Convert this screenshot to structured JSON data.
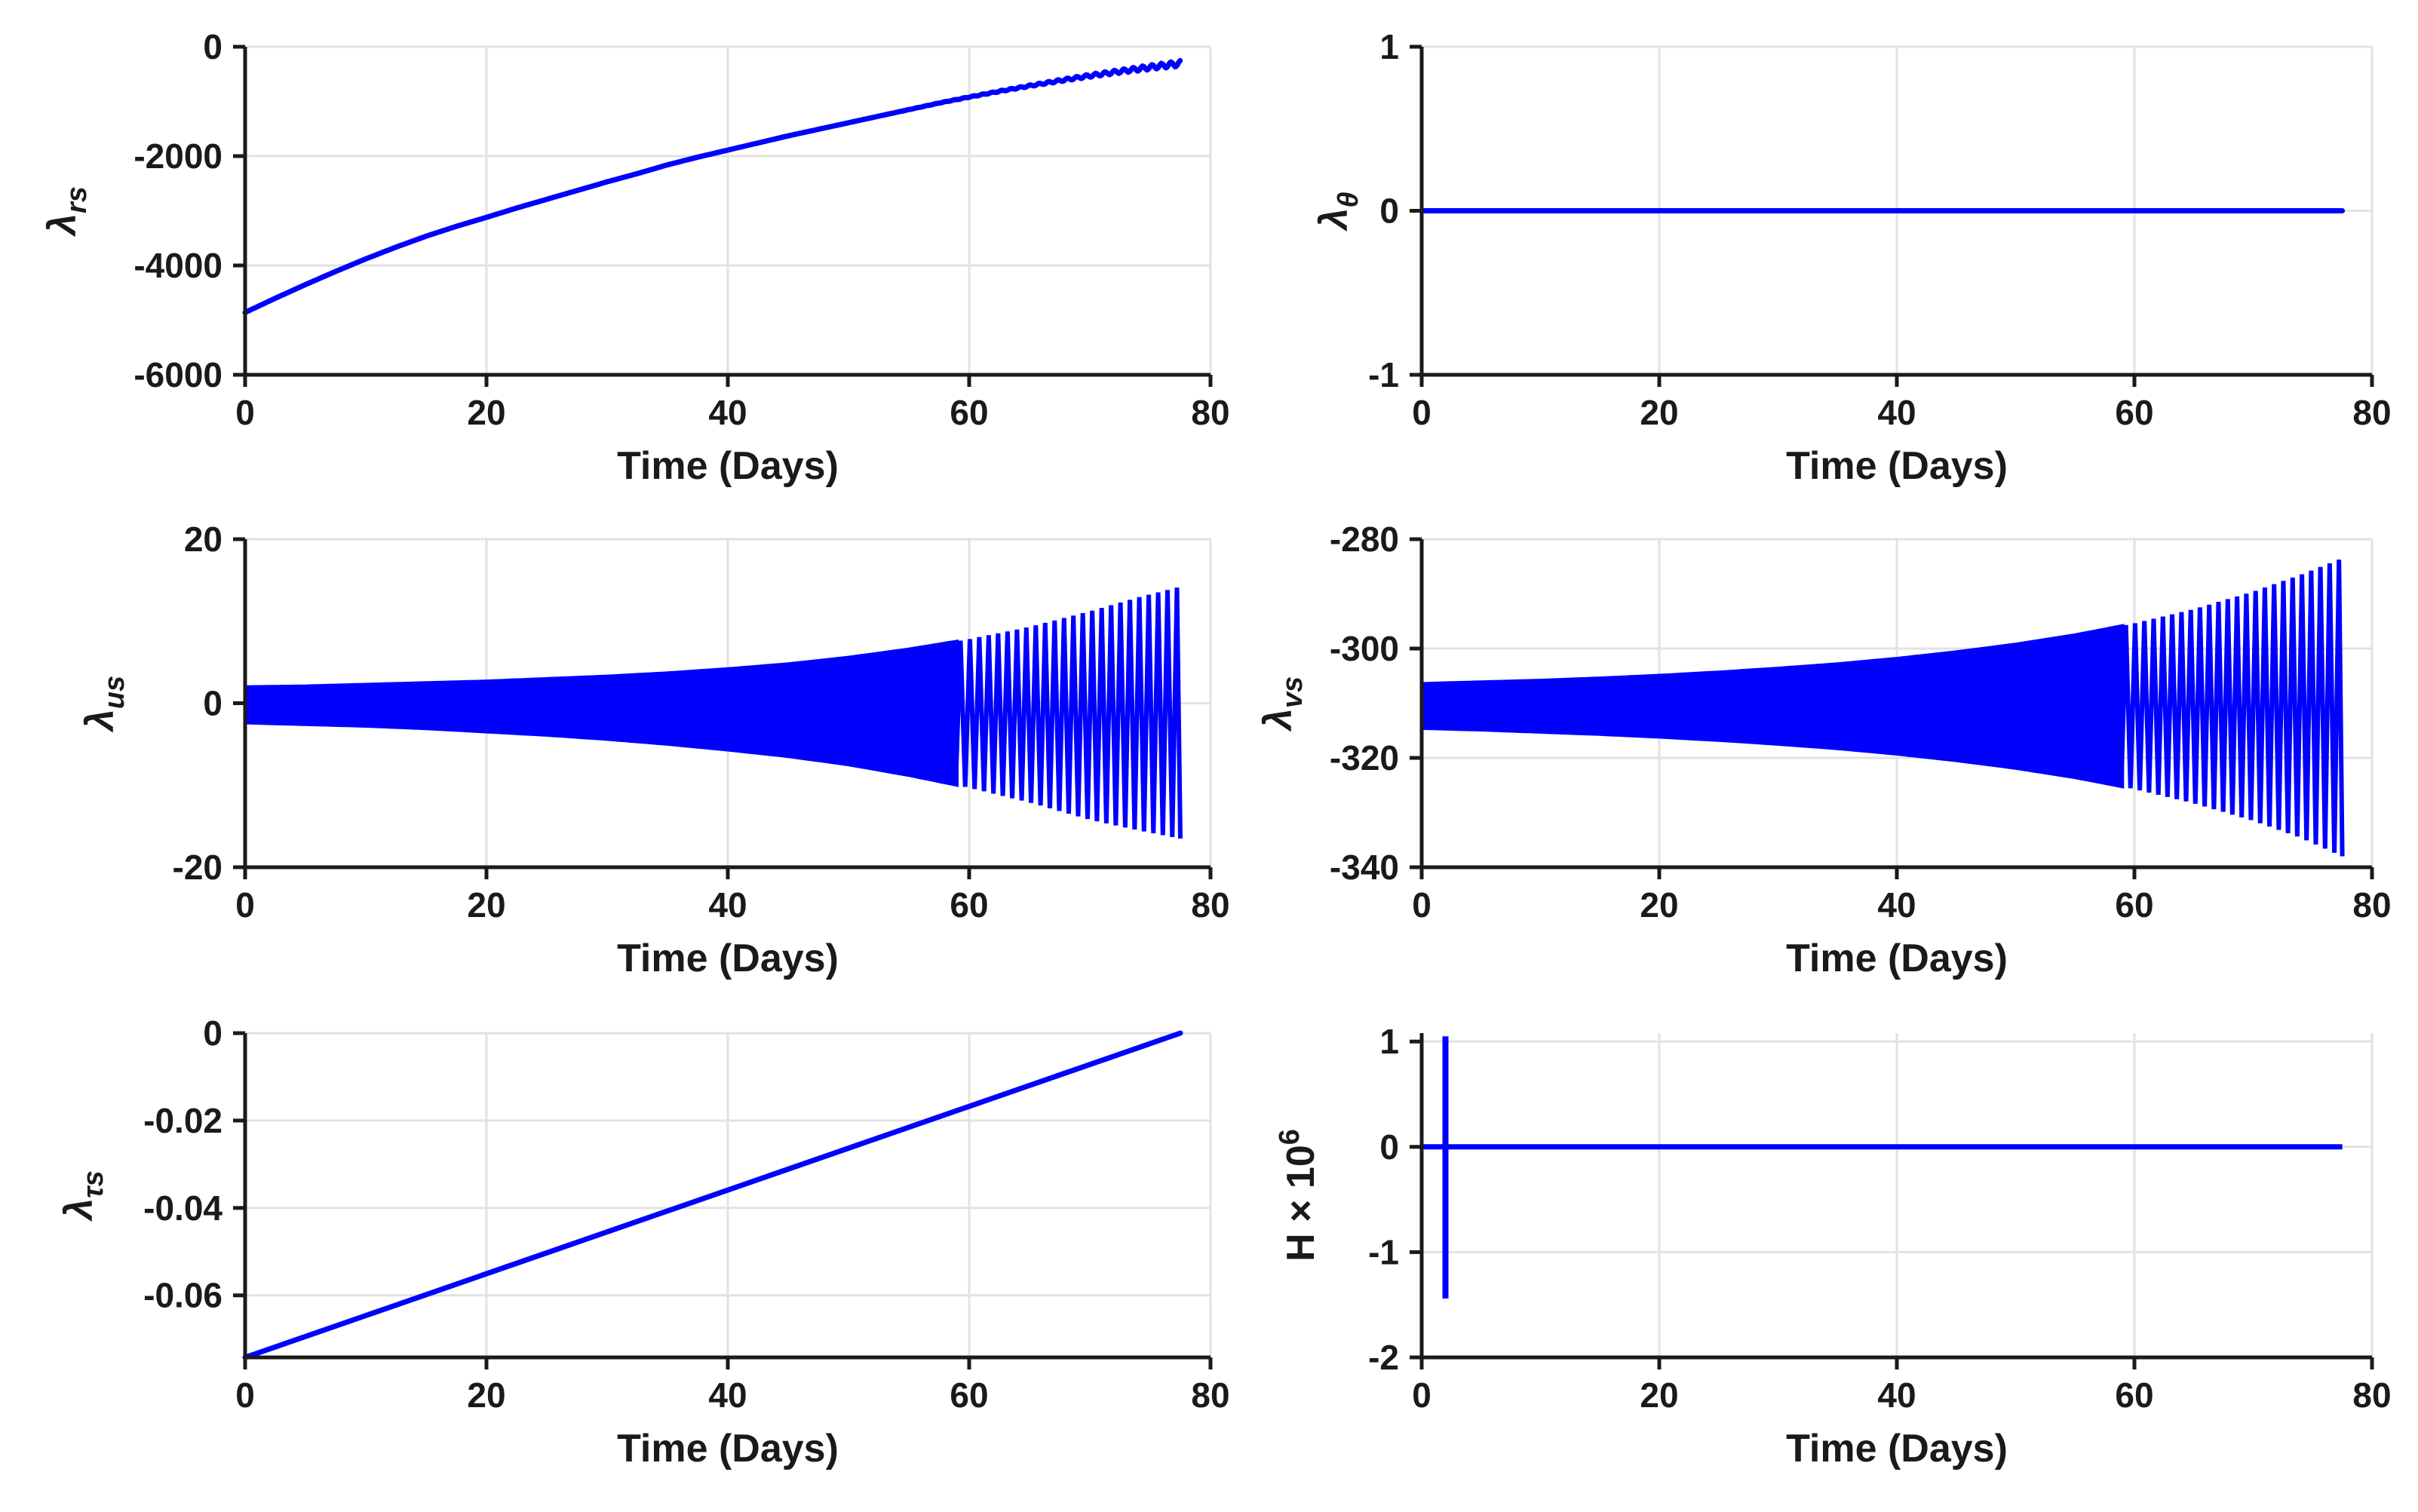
{
  "figure": {
    "background": "#FFFFFF",
    "line_color": "#0000FF",
    "grid_color": "#E2E2E2",
    "axis_color": "#1A1A1A",
    "text_color": "#1A1A1A",
    "xlabel": "Time (Days)",
    "t_end": 77.5
  },
  "chart_data": [
    {
      "id": "lambda-rs",
      "type": "line",
      "ylabel_parts": [
        {
          "t": "λ",
          "i": 1
        },
        {
          "t": "rs",
          "i": 1,
          "s": "sub"
        }
      ],
      "ylabel_text": "lambda_rs",
      "xlabel": "Time (Days)",
      "xlim": [
        0,
        80
      ],
      "ylim": [
        -6000,
        0
      ],
      "xticks": [
        0,
        20,
        40,
        60,
        80
      ],
      "xtick_labels": [
        "0",
        "20",
        "40",
        "60",
        "80"
      ],
      "yticks": [
        0,
        -2000,
        -4000,
        -6000
      ],
      "ytick_labels": [
        "0",
        "-2000",
        "-4000",
        "-6000"
      ],
      "grid": true,
      "x_end": 77.5,
      "points": [
        [
          0,
          -4860
        ],
        [
          2.5,
          -4600
        ],
        [
          5,
          -4350
        ],
        [
          7.5,
          -4110
        ],
        [
          10,
          -3880
        ],
        [
          12.5,
          -3665
        ],
        [
          15,
          -3465
        ],
        [
          17.5,
          -3285
        ],
        [
          20,
          -3120
        ],
        [
          22.5,
          -2950
        ],
        [
          25,
          -2790
        ],
        [
          27.5,
          -2630
        ],
        [
          30,
          -2470
        ],
        [
          32.5,
          -2320
        ],
        [
          35,
          -2160
        ],
        [
          37.5,
          -2020
        ],
        [
          40,
          -1890
        ],
        [
          42.5,
          -1760
        ],
        [
          45,
          -1630
        ],
        [
          47.5,
          -1510
        ],
        [
          50,
          -1390
        ],
        [
          52.5,
          -1270
        ],
        [
          55,
          -1150
        ],
        [
          57.5,
          -1030
        ],
        [
          60,
          -920
        ],
        [
          62.5,
          -815
        ],
        [
          65,
          -715
        ],
        [
          67.5,
          -620
        ],
        [
          70,
          -530
        ],
        [
          72.5,
          -450
        ],
        [
          75,
          -375
        ],
        [
          77.5,
          -305
        ]
      ],
      "ripple": {
        "start": 50,
        "period": 0.78,
        "amp_end": 52,
        "power": 2
      }
    },
    {
      "id": "lambda-theta",
      "type": "line",
      "ylabel_parts": [
        {
          "t": "λ",
          "i": 1
        },
        {
          "t": "θ",
          "i": 1,
          "s": "sub"
        }
      ],
      "ylabel_text": "lambda_theta",
      "xlabel": "Time (Days)",
      "xlim": [
        0,
        80
      ],
      "ylim": [
        -1,
        1
      ],
      "xticks": [
        0,
        20,
        40,
        60,
        80
      ],
      "xtick_labels": [
        "0",
        "20",
        "40",
        "60",
        "80"
      ],
      "yticks": [
        1,
        0,
        -1
      ],
      "ytick_labels": [
        "1",
        "0",
        "-1"
      ],
      "grid": true,
      "x_end": 77.5,
      "points": [
        [
          0,
          0
        ],
        [
          77.5,
          0
        ]
      ]
    },
    {
      "id": "lambda-us",
      "type": "oscillation",
      "ylabel_parts": [
        {
          "t": "λ",
          "i": 1
        },
        {
          "t": "us",
          "i": 1,
          "s": "sub"
        }
      ],
      "ylabel_text": "lambda_us",
      "xlabel": "Time (Days)",
      "xlim": [
        0,
        80
      ],
      "ylim": [
        -20,
        20
      ],
      "xticks": [
        0,
        20,
        40,
        60,
        80
      ],
      "xtick_labels": [
        "0",
        "20",
        "40",
        "60",
        "80"
      ],
      "yticks": [
        20,
        0,
        -20
      ],
      "ytick_labels": [
        "20",
        "0",
        "-20"
      ],
      "grid": true,
      "x_end": 77.5,
      "envelope": {
        "t": [
          0,
          5,
          10,
          15,
          20,
          25,
          30,
          35,
          40,
          45,
          50,
          55,
          60,
          65,
          70,
          74,
          77.5
        ],
        "upper": [
          2.0,
          2.1,
          2.3,
          2.5,
          2.7,
          3.0,
          3.3,
          3.7,
          4.2,
          4.8,
          5.6,
          6.6,
          7.8,
          9.3,
          11.2,
          12.9,
          14.2
        ],
        "lower": [
          -2.4,
          -2.6,
          -2.8,
          -3.1,
          -3.5,
          -3.9,
          -4.4,
          -5.0,
          -5.7,
          -6.5,
          -7.5,
          -8.8,
          -10.3,
          -12.1,
          -14.2,
          -15.5,
          -16.5
        ]
      },
      "solid_until": 59,
      "spike_start": 53,
      "spike_period": 0.78
    },
    {
      "id": "lambda-vs",
      "type": "oscillation",
      "ylabel_parts": [
        {
          "t": "λ",
          "i": 1
        },
        {
          "t": "vs",
          "i": 1,
          "s": "sub"
        }
      ],
      "ylabel_text": "lambda_vs",
      "xlabel": "Time (Days)",
      "xlim": [
        0,
        80
      ],
      "ylim": [
        -340,
        -280
      ],
      "xticks": [
        0,
        20,
        40,
        60,
        80
      ],
      "xtick_labels": [
        "0",
        "20",
        "40",
        "60",
        "80"
      ],
      "yticks": [
        -280,
        -300,
        -320,
        -340
      ],
      "ytick_labels": [
        "-280",
        "-300",
        "-320",
        "-340"
      ],
      "grid": true,
      "x_end": 77.5,
      "envelope": {
        "t": [
          0,
          5,
          10,
          15,
          20,
          25,
          30,
          35,
          40,
          45,
          50,
          55,
          60,
          65,
          70,
          74,
          77.5
        ],
        "upper": [
          -306.4,
          -306.1,
          -305.8,
          -305.4,
          -304.9,
          -304.3,
          -303.6,
          -302.8,
          -301.8,
          -300.6,
          -299.2,
          -297.5,
          -295.4,
          -292.8,
          -289.6,
          -286.5,
          -283.5
        ],
        "lower": [
          -314.6,
          -314.9,
          -315.3,
          -315.7,
          -316.2,
          -316.8,
          -317.5,
          -318.3,
          -319.3,
          -320.5,
          -321.9,
          -323.6,
          -325.7,
          -328.3,
          -331.5,
          -334.6,
          -338.0
        ]
      },
      "solid_until": 59,
      "spike_start": 53,
      "spike_period": 0.78
    },
    {
      "id": "lambda-tau-s",
      "type": "line",
      "ylabel_parts": [
        {
          "t": "λ",
          "i": 1
        },
        {
          "t": "τs",
          "i": 1,
          "s": "sub"
        }
      ],
      "ylabel_text": "lambda_tau_s",
      "xlabel": "Time (Days)",
      "xlim": [
        0,
        80
      ],
      "ylim": [
        -0.0742,
        0
      ],
      "xticks": [
        0,
        20,
        40,
        60,
        80
      ],
      "xtick_labels": [
        "0",
        "20",
        "40",
        "60",
        "80"
      ],
      "yticks": [
        0,
        -0.02,
        -0.04,
        -0.06
      ],
      "ytick_labels": [
        "0",
        "-0.02",
        "-0.04",
        "-0.06"
      ],
      "grid": true,
      "x_end": 77.5,
      "points": [
        [
          0,
          -0.0742
        ],
        [
          77.5,
          0
        ]
      ]
    },
    {
      "id": "hamiltonian",
      "type": "hline_spike",
      "ylabel_parts": [
        {
          "t": "H"
        },
        {
          "t": " × 10"
        },
        {
          "t": "6",
          "s": "sup"
        }
      ],
      "ylabel_text": "H x 10^6",
      "xlabel": "Time (Days)",
      "xlim": [
        0,
        80
      ],
      "ylim": [
        -2,
        1.08
      ],
      "xticks": [
        0,
        20,
        40,
        60,
        80
      ],
      "xtick_labels": [
        "0",
        "20",
        "40",
        "60",
        "80"
      ],
      "yticks": [
        1,
        0,
        -1,
        -2
      ],
      "ytick_labels": [
        "1",
        "0",
        "-1",
        "-2"
      ],
      "grid": true,
      "x_end": 77.5,
      "baseline": 0,
      "spike": {
        "t": 2.0,
        "ymax": 1.05,
        "ymin": -1.44
      }
    }
  ]
}
